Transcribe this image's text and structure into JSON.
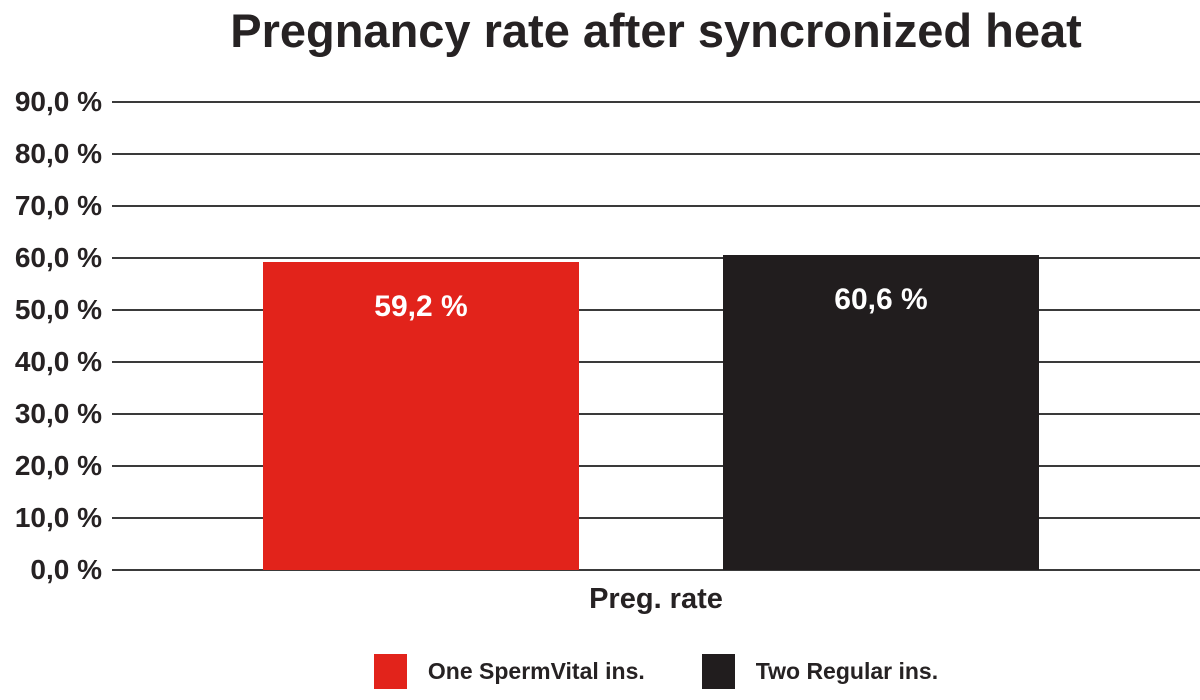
{
  "page": {
    "background_color": "#ffffff",
    "text_color": "#262223"
  },
  "chart_data": {
    "type": "bar",
    "title": "Pregnancy rate after syncronized heat",
    "xlabel": "Preg. rate",
    "ylabel": "",
    "categories": [
      "Preg. rate"
    ],
    "series": [
      {
        "name": "One SpermVital ins.",
        "value": 59.2,
        "value_label": "59,2 %",
        "color": "#e2231b"
      },
      {
        "name": "Two Regular ins.",
        "value": 60.6,
        "value_label": "60,6 %",
        "color": "#211d1e"
      }
    ],
    "ylim": [
      0,
      90
    ],
    "yticks": [
      {
        "value": 0,
        "label": "0,0 %"
      },
      {
        "value": 10,
        "label": "10,0 %"
      },
      {
        "value": 20,
        "label": "20,0 %"
      },
      {
        "value": 30,
        "label": "30,0 %"
      },
      {
        "value": 40,
        "label": "40,0 %"
      },
      {
        "value": 50,
        "label": "50,0 %"
      },
      {
        "value": 60,
        "label": "60,0 %"
      },
      {
        "value": 70,
        "label": "70,0 %"
      },
      {
        "value": 80,
        "label": "80,0 %"
      },
      {
        "value": 90,
        "label": "90,0 %"
      }
    ],
    "grid": true,
    "gridline_color": "#3a3a3a",
    "bar_label_color": "#ffffff",
    "legend_position": "bottom"
  }
}
